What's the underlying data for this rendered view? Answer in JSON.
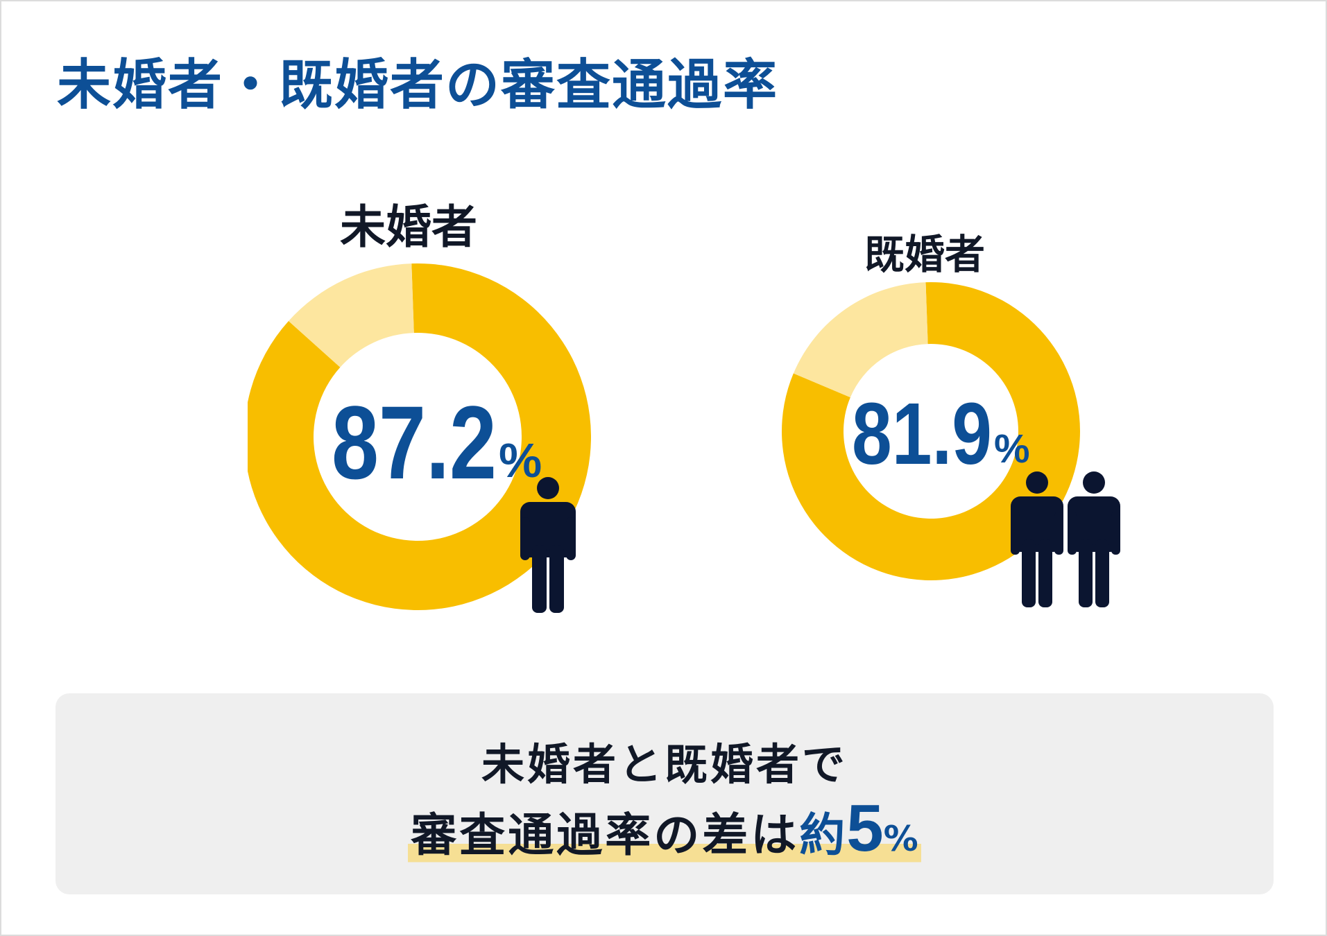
{
  "title": "未婚者・既婚者の審査通過率",
  "colors": {
    "accent": "#0d4f96",
    "pass": "#f8be00",
    "fail": "#fde69f",
    "person": "#0b1530",
    "highlight": "#f6df94"
  },
  "icons": [
    "single-person-icon",
    "two-people-icon"
  ],
  "chart_data": [
    {
      "type": "pie",
      "label": "未婚者",
      "values": [
        87.2,
        12.8
      ],
      "value_label": "87.2",
      "unit": "%"
    },
    {
      "type": "pie",
      "label": "既婚者",
      "values": [
        81.9,
        18.1
      ],
      "value_label": "81.9",
      "unit": "%"
    }
  ],
  "summary": {
    "line1": "未婚者と既婚者で",
    "line2_text": "審査通過率の差は",
    "line2_approx": "約",
    "line2_value": "5",
    "line2_unit": "%"
  }
}
